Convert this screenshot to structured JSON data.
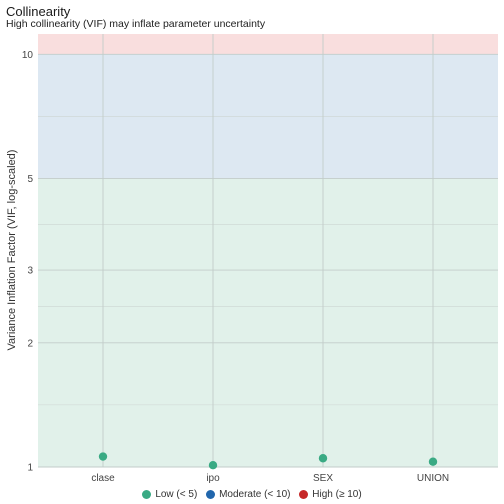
{
  "chart_data": {
    "type": "scatter",
    "title": "Collinearity",
    "subtitle": "High collinearity (VIF) may inflate parameter uncertainty",
    "ylabel": "Variance Inflation Factor (VIF, log-scaled)",
    "xlabel": "",
    "y_scale": "log",
    "ylim": [
      1,
      11.2
    ],
    "yticks": [
      1,
      2,
      3,
      5,
      10
    ],
    "grid": true,
    "legend_position": "bottom",
    "categories": [
      "clase",
      "ipo",
      "SEX",
      "UNION"
    ],
    "values": [
      1.06,
      1.01,
      1.05,
      1.03
    ],
    "zones": [
      {
        "from": 1,
        "to": 5,
        "color": "#e1f1ea"
      },
      {
        "from": 5,
        "to": 10,
        "color": "#dde8f2"
      },
      {
        "from": 10,
        "to": 11.2,
        "color": "#f9dede"
      }
    ],
    "legend": [
      {
        "label": "Low (< 5)",
        "color": "#3aaa84"
      },
      {
        "label": "Moderate (< 10)",
        "color": "#2166ac"
      },
      {
        "label": "High (≥ 10)",
        "color": "#c62828"
      }
    ],
    "point_color": "#3aaa84"
  }
}
